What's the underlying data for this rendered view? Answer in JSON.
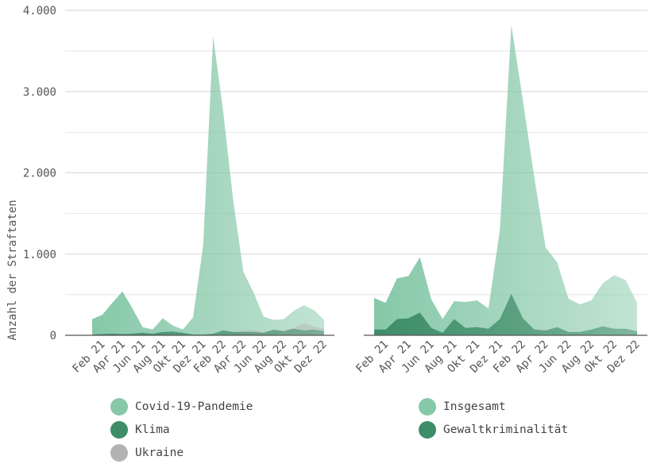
{
  "chart_data": [
    {
      "type": "area",
      "xlabel": "",
      "ylabel": "Anzahl der Straftaten",
      "ylim": [
        0,
        4000
      ],
      "yticks": [
        "0",
        "1.000",
        "2.000",
        "3.000",
        "4.000"
      ],
      "ytick_values": [
        0,
        1000,
        2000,
        3000,
        4000
      ],
      "x": [
        "Jan 21",
        "Feb 21",
        "Mär 21",
        "Apr 21",
        "Mai 21",
        "Jun 21",
        "Jul 21",
        "Aug 21",
        "Sep 21",
        "Okt 21",
        "Nov 21",
        "Dez 21",
        "Jan 22",
        "Feb 22",
        "Mär 22",
        "Apr 22",
        "Mai 22",
        "Jun 22",
        "Jul 22",
        "Aug 22",
        "Sep 22",
        "Okt 22",
        "Nov 22",
        "Dez 22"
      ],
      "xtick_labels": [
        "Feb 21",
        "Apr 21",
        "Jun 21",
        "Aug 21",
        "Okt 21",
        "Dez 21",
        "Feb 22",
        "Apr 22",
        "Jun 22",
        "Aug 22",
        "Okt 22",
        "Dez 22"
      ],
      "series": [
        {
          "name": "Covid-19-Pandemie",
          "color": "#86c8a8",
          "values": [
            200,
            250,
            400,
            540,
            330,
            100,
            70,
            210,
            120,
            70,
            220,
            1100,
            3680,
            2750,
            1650,
            780,
            530,
            230,
            190,
            200,
            300,
            370,
            310,
            190
          ]
        },
        {
          "name": "Ukraine",
          "color": "#b3b3b3",
          "values": [
            0,
            0,
            0,
            0,
            0,
            0,
            0,
            0,
            0,
            0,
            0,
            0,
            0,
            0,
            30,
            60,
            60,
            40,
            50,
            60,
            90,
            150,
            110,
            80
          ]
        },
        {
          "name": "Klima",
          "color": "#3e8c68",
          "values": [
            10,
            15,
            20,
            15,
            20,
            30,
            20,
            40,
            45,
            30,
            10,
            10,
            20,
            60,
            40,
            40,
            40,
            30,
            70,
            50,
            80,
            60,
            70,
            50
          ]
        }
      ],
      "grid": true,
      "legend_placement": "bottom"
    },
    {
      "type": "area",
      "xlabel": "",
      "ylabel": "",
      "ylim": [
        0,
        4000
      ],
      "x": [
        "Jan 21",
        "Feb 21",
        "Mär 21",
        "Apr 21",
        "Mai 21",
        "Jun 21",
        "Jul 21",
        "Aug 21",
        "Sep 21",
        "Okt 21",
        "Nov 21",
        "Dez 21",
        "Jan 22",
        "Feb 22",
        "Mär 22",
        "Apr 22",
        "Mai 22",
        "Jun 22",
        "Jul 22",
        "Aug 22",
        "Sep 22",
        "Okt 22",
        "Nov 22",
        "Dez 22"
      ],
      "xtick_labels": [
        "Feb 21",
        "Apr 21",
        "Jun 21",
        "Aug 21",
        "Okt 21",
        "Dez 21",
        "Feb 22",
        "Apr 22",
        "Jun 22",
        "Aug 22",
        "Okt 22",
        "Dez 22"
      ],
      "series": [
        {
          "name": "Insgesamt",
          "color": "#86c8a8",
          "values": [
            460,
            400,
            700,
            730,
            960,
            440,
            200,
            420,
            410,
            430,
            330,
            1300,
            3820,
            2900,
            1950,
            1080,
            900,
            450,
            380,
            430,
            640,
            740,
            680,
            400
          ]
        },
        {
          "name": "Gewaltkriminalität",
          "color": "#3e8c68",
          "values": [
            70,
            70,
            200,
            210,
            280,
            90,
            30,
            200,
            90,
            100,
            80,
            200,
            510,
            210,
            70,
            60,
            100,
            40,
            40,
            70,
            110,
            80,
            80,
            50
          ]
        }
      ],
      "grid": true,
      "legend_placement": "bottom"
    }
  ],
  "legend_left": [
    {
      "label": "Covid-19-Pandemie",
      "color": "#86c8a8"
    },
    {
      "label": "Klima",
      "color": "#3e8c68"
    },
    {
      "label": "Ukraine",
      "color": "#b3b3b3"
    }
  ],
  "legend_right": [
    {
      "label": "Insgesamt",
      "color": "#86c8a8"
    },
    {
      "label": "Gewaltkriminalität",
      "color": "#3e8c68"
    }
  ]
}
